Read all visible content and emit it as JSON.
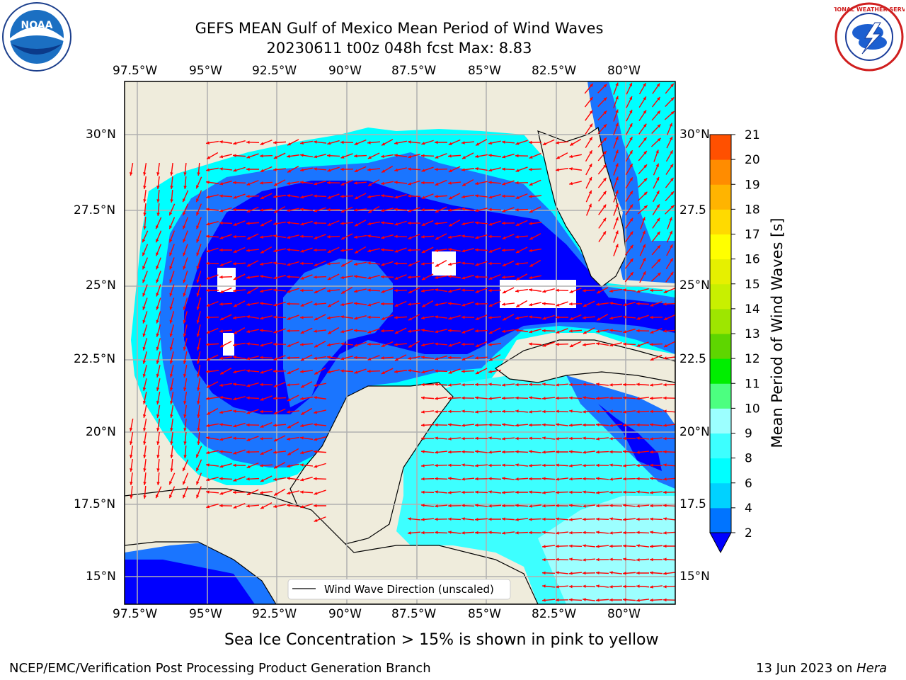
{
  "title": {
    "line1": "GEFS MEAN Gulf of Mexico Mean Period of Wind Waves",
    "line2": "20230611 t00z 048h fcst   Max: 8.83"
  },
  "logos": {
    "left": "noaa-logo",
    "left_text": "NOAA",
    "right": "nws-logo",
    "right_text": "NATIONAL WEATHER SERVICE"
  },
  "axes": {
    "lon_labels": [
      "97.5°W",
      "95°W",
      "92.5°W",
      "90°W",
      "87.5°W",
      "85°W",
      "82.5°W",
      "80°W"
    ],
    "lat_labels": [
      "30°N",
      "27.5°N",
      "25°N",
      "22.5°N",
      "20°N",
      "17.5°N",
      "15°N"
    ],
    "lat_labels_right": [
      "30°N",
      "27.5",
      "25°N",
      "22.5",
      "20°N",
      "17.5",
      "15°N"
    ]
  },
  "legend": {
    "label": "Wind Wave Direction (unscaled)"
  },
  "colorbar": {
    "label": "Mean Period of Wind Waves [s]",
    "ticks": [
      "2",
      "4",
      "6",
      "8",
      "9",
      "10",
      "11",
      "12",
      "13",
      "14",
      "15",
      "16",
      "17",
      "18",
      "19",
      "20",
      "21"
    ],
    "colors": [
      "#0074ff",
      "#00d2ff",
      "#00ffff",
      "#3dffff",
      "#9cffff",
      "#4cff80",
      "#00ee00",
      "#5ed600",
      "#9ee600",
      "#c8f000",
      "#e6f000",
      "#ffff00",
      "#ffda00",
      "#ffb400",
      "#ff8c00",
      "#ff5000",
      "#ff2000",
      "#ff0000"
    ],
    "under_color": "#0000ff"
  },
  "map_colors": {
    "land": "#efecdc",
    "deep": "#0000ff",
    "blue": "#1a75ff",
    "cyan": "#00ffff",
    "light_cyan": "#9cffff",
    "arrow": "#ff0000",
    "grid": "#b0b0b0"
  },
  "subtitle": "Sea Ice Concentration > 15% is shown in pink to yellow",
  "footer": {
    "left": "NCEP/EMC/Verification Post Processing Product Generation Branch",
    "right_prefix": "13 Jun 2023 on ",
    "right_host": "Hera"
  }
}
